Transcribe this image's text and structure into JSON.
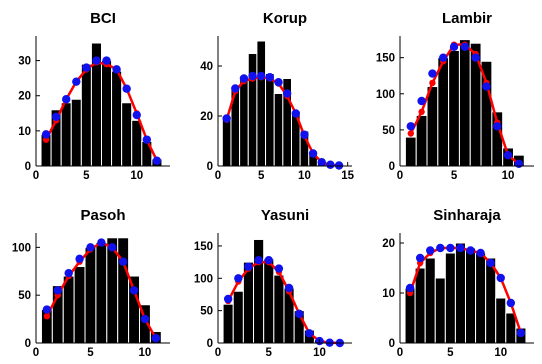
{
  "chart_data": [
    {
      "type": "bar",
      "title": "BCI",
      "xlim": [
        0,
        13.3
      ],
      "ylim": [
        0,
        37
      ],
      "xticks": [
        0,
        5,
        10
      ],
      "yticks": [
        0,
        10,
        20,
        30
      ],
      "xticklabels": [
        "0",
        "5",
        "10"
      ],
      "yticklabels": [
        "0",
        "10",
        "20",
        "30"
      ],
      "bars": {
        "x": [
          1,
          2,
          3,
          4,
          5,
          6,
          7,
          8,
          9,
          10,
          11,
          12
        ],
        "values": [
          9,
          16,
          18,
          19,
          29,
          35,
          30,
          27,
          18,
          13,
          7,
          2
        ]
      },
      "series": [
        {
          "color": "#ff0000",
          "marker": "circle-small",
          "x": [
            1,
            2,
            3,
            4,
            5,
            6,
            7,
            8,
            9,
            10,
            11,
            12
          ],
          "values": [
            7.5,
            13,
            19,
            24,
            27.5,
            29.5,
            29,
            27.5,
            22,
            15,
            7.5,
            1.5
          ]
        },
        {
          "color": "#1111ee",
          "marker": "circle",
          "x": [
            1,
            2,
            3,
            4,
            5,
            6,
            7,
            8,
            9,
            10,
            11,
            12
          ],
          "values": [
            9,
            14,
            19,
            24,
            28,
            30,
            30,
            27.5,
            22,
            14.5,
            7.5,
            1.5
          ]
        }
      ]
    },
    {
      "type": "bar",
      "title": "Korup",
      "xlim": [
        0,
        15.5
      ],
      "ylim": [
        0,
        52
      ],
      "xticks": [
        0,
        5,
        10,
        15
      ],
      "yticks": [
        0,
        20,
        40
      ],
      "xticklabels": [
        "0",
        "5",
        "10",
        "15"
      ],
      "yticklabels": [
        "0",
        "20",
        "40"
      ],
      "bars": {
        "x": [
          1,
          2,
          3,
          4,
          5,
          6,
          7,
          8,
          9,
          10,
          11,
          12,
          13,
          14
        ],
        "values": [
          19,
          31,
          36,
          45,
          50,
          37,
          29,
          35,
          22,
          14,
          6,
          2,
          0,
          0
        ]
      },
      "series": [
        {
          "color": "#ff0000",
          "marker": "circle-small",
          "x": [
            1,
            2,
            3,
            4,
            5,
            6,
            7,
            8,
            9,
            10,
            11,
            12,
            13,
            14
          ],
          "values": [
            18.5,
            30,
            34,
            35,
            35.5,
            35,
            33,
            28,
            21,
            12,
            5,
            1.5,
            0.4,
            0.2
          ]
        },
        {
          "color": "#1111ee",
          "marker": "circle",
          "x": [
            1,
            2,
            3,
            4,
            5,
            6,
            7,
            8,
            9,
            10,
            11,
            12,
            13,
            14
          ],
          "values": [
            19,
            31,
            35,
            36,
            36,
            35.5,
            33.5,
            29,
            21,
            12.5,
            5,
            1.5,
            0.5,
            0.2
          ]
        }
      ]
    },
    {
      "type": "bar",
      "title": "Lambir",
      "xlim": [
        0,
        12.4
      ],
      "ylim": [
        0,
        180
      ],
      "xticks": [
        0,
        5,
        10
      ],
      "yticks": [
        0,
        50,
        100,
        150
      ],
      "xticklabels": [
        "0",
        "5",
        "10"
      ],
      "yticklabels": [
        "0",
        "50",
        "100",
        "150"
      ],
      "bars": {
        "x": [
          1,
          2,
          3,
          4,
          5,
          6,
          7,
          8,
          9,
          10,
          11
        ],
        "values": [
          40,
          70,
          110,
          150,
          160,
          175,
          170,
          145,
          75,
          25,
          15
        ]
      },
      "series": [
        {
          "color": "#ff0000",
          "marker": "circle-small",
          "x": [
            1,
            2,
            3,
            4,
            5,
            6,
            7,
            8,
            9,
            10,
            11
          ],
          "values": [
            45,
            75,
            115,
            145,
            168,
            168,
            155,
            115,
            60,
            15,
            3
          ]
        },
        {
          "color": "#1111ee",
          "marker": "circle",
          "x": [
            1,
            2,
            3,
            4,
            5,
            6,
            7,
            8,
            9,
            10,
            11
          ],
          "values": [
            55,
            90,
            128,
            150,
            165,
            165,
            150,
            110,
            55,
            15,
            3
          ]
        }
      ]
    },
    {
      "type": "bar",
      "title": "Pasoh",
      "xlim": [
        0,
        12.3
      ],
      "ylim": [
        0,
        115
      ],
      "xticks": [
        0,
        5,
        10
      ],
      "yticks": [
        0,
        50,
        100
      ],
      "xticklabels": [
        "0",
        "5",
        "10"
      ],
      "yticklabels": [
        "0",
        "50",
        "100"
      ],
      "bars": {
        "x": [
          1,
          2,
          3,
          4,
          5,
          6,
          7,
          8,
          9,
          10,
          11
        ],
        "values": [
          35,
          60,
          70,
          80,
          100,
          105,
          110,
          110,
          70,
          40,
          12
        ]
      },
      "series": [
        {
          "color": "#ff0000",
          "marker": "circle-small",
          "x": [
            1,
            2,
            3,
            4,
            5,
            6,
            7,
            8,
            9,
            10,
            11
          ],
          "values": [
            28,
            50,
            70,
            85,
            98,
            105,
            100,
            85,
            55,
            25,
            5
          ]
        },
        {
          "color": "#1111ee",
          "marker": "circle",
          "x": [
            1,
            2,
            3,
            4,
            5,
            6,
            7,
            8,
            9,
            10,
            11
          ],
          "values": [
            35,
            55,
            73,
            88,
            100,
            105,
            100,
            85,
            55,
            25,
            5
          ]
        }
      ]
    },
    {
      "type": "bar",
      "title": "Yasuni",
      "xlim": [
        0,
        13.2
      ],
      "ylim": [
        0,
        170
      ],
      "xticks": [
        0,
        5,
        10
      ],
      "yticks": [
        0,
        50,
        100,
        150
      ],
      "xticklabels": [
        "0",
        "5",
        "10"
      ],
      "yticklabels": [
        "0",
        "50",
        "100",
        "150"
      ],
      "bars": {
        "x": [
          1,
          2,
          3,
          4,
          5,
          6,
          7,
          8,
          9,
          10,
          11,
          12
        ],
        "values": [
          60,
          80,
          125,
          160,
          130,
          105,
          85,
          50,
          20,
          5,
          0,
          0
        ]
      },
      "series": [
        {
          "color": "#ff0000",
          "marker": "circle-small",
          "x": [
            1,
            2,
            3,
            4,
            5,
            6,
            7,
            8,
            9,
            10,
            11,
            12
          ],
          "values": [
            65,
            95,
            115,
            125,
            125,
            110,
            80,
            45,
            15,
            3,
            0.5,
            0
          ]
        },
        {
          "color": "#1111ee",
          "marker": "circle",
          "x": [
            1,
            2,
            3,
            4,
            5,
            6,
            7,
            8,
            9,
            10,
            11,
            12
          ],
          "values": [
            68,
            100,
            118,
            128,
            128,
            115,
            85,
            45,
            15,
            3,
            0.5,
            0
          ]
        }
      ]
    },
    {
      "type": "bar",
      "title": "Sinharaja",
      "xlim": [
        0,
        13.3
      ],
      "ylim": [
        0,
        22
      ],
      "xticks": [
        0,
        5,
        10
      ],
      "yticks": [
        0,
        10,
        20
      ],
      "xticklabels": [
        "0",
        "5",
        "10"
      ],
      "yticklabels": [
        "0",
        "10",
        "20"
      ],
      "bars": {
        "x": [
          1,
          2,
          3,
          4,
          5,
          6,
          7,
          8,
          9,
          10,
          11,
          12
        ],
        "values": [
          11,
          15,
          17,
          13,
          18,
          20,
          19,
          18,
          17,
          9,
          6,
          3
        ]
      },
      "series": [
        {
          "color": "#ff0000",
          "marker": "circle-small",
          "x": [
            1,
            2,
            3,
            4,
            5,
            6,
            7,
            8,
            9,
            10,
            11,
            12
          ],
          "values": [
            10,
            16,
            18,
            19,
            19,
            19,
            18.5,
            18,
            16,
            13,
            8,
            2
          ]
        },
        {
          "color": "#1111ee",
          "marker": "circle",
          "x": [
            1,
            2,
            3,
            4,
            5,
            6,
            7,
            8,
            9,
            10,
            11,
            12
          ],
          "values": [
            11,
            17,
            18.5,
            19,
            19,
            19,
            18.5,
            18,
            16,
            13,
            8,
            2
          ]
        }
      ]
    }
  ]
}
